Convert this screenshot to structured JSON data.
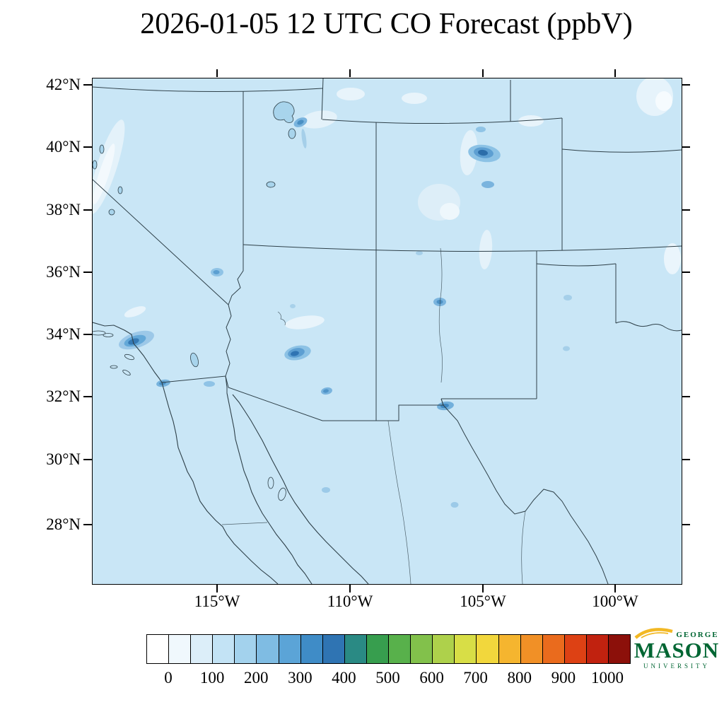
{
  "title": "2026-01-05 12 UTC CO Forecast (ppbV)",
  "axes": {
    "lat_labels": [
      "42°N",
      "40°N",
      "38°N",
      "36°N",
      "34°N",
      "32°N",
      "30°N",
      "28°N"
    ],
    "lon_labels": [
      "115°W",
      "110°W",
      "105°W",
      "100°W"
    ]
  },
  "colorbar": {
    "tick_labels": [
      "0",
      "100",
      "200",
      "300",
      "400",
      "500",
      "600",
      "700",
      "800",
      "900",
      "1000"
    ],
    "colors": [
      "#ffffff",
      "#f0f8fd",
      "#dceef9",
      "#c3e3f5",
      "#a3d2ed",
      "#7fbce3",
      "#5ba4d7",
      "#3f8cc7",
      "#2f74b3",
      "#2a8a84",
      "#379e4e",
      "#58b14b",
      "#82c14b",
      "#aed14b",
      "#d8de46",
      "#f2d73c",
      "#f5b52f",
      "#f19026",
      "#ea6b1d",
      "#dd4114",
      "#c1220f",
      "#8c100a"
    ]
  },
  "logo": {
    "line1": "GEORGE",
    "line2": "MASON",
    "line3": "UNIVERSITY"
  },
  "colors": {
    "map_background": "#c9e6f6",
    "border_lines": "#2e4049",
    "frame": "#000000",
    "logo_green": "#006633",
    "logo_gold": "#f2b824",
    "hotspot_blue_light": "#8cc2e5",
    "hotspot_blue_mid": "#5d9fd2",
    "hotspot_blue_dark": "#2f74b3"
  },
  "chart_data": {
    "type": "heatmap",
    "title": "2026-01-05 12 UTC CO Forecast (ppbV)",
    "variable": "CO",
    "units": "ppbV",
    "valid_time": "2026-01-05 12 UTC",
    "extent": {
      "lon_west": -120,
      "lon_east": -97.5,
      "lat_south": 26.2,
      "lat_north": 42.3
    },
    "x_tick_labels": [
      "115°W",
      "110°W",
      "105°W",
      "100°W"
    ],
    "y_tick_labels": [
      "42°N",
      "40°N",
      "38°N",
      "36°N",
      "34°N",
      "32°N",
      "30°N",
      "28°N"
    ],
    "colorbar": {
      "min": 0,
      "max": 1000,
      "cell_interval": 50,
      "tick_interval": 100,
      "n_cells": 22,
      "orientation": "horizontal"
    },
    "background_level_ppbv": 100,
    "elevated_regions": [
      {
        "lon": -105.0,
        "lat": 39.7,
        "approx_peak_ppbv": 450
      },
      {
        "lon": -112.1,
        "lat": 33.4,
        "approx_peak_ppbv": 400
      },
      {
        "lon": -118.2,
        "lat": 34.0,
        "approx_peak_ppbv": 350
      },
      {
        "lon": -106.5,
        "lat": 31.8,
        "approx_peak_ppbv": 300
      },
      {
        "lon": -111.9,
        "lat": 40.8,
        "approx_peak_ppbv": 250
      },
      {
        "lon": -106.7,
        "lat": 35.1,
        "approx_peak_ppbv": 250
      },
      {
        "lon": -117.1,
        "lat": 32.6,
        "approx_peak_ppbv": 250
      },
      {
        "lon": -115.2,
        "lat": 36.1,
        "approx_peak_ppbv": 200
      },
      {
        "lon": -111.0,
        "lat": 32.2,
        "approx_peak_ppbv": 200
      }
    ],
    "low_level_ppbv_over_mountains": 50,
    "grid": false,
    "legend_position": "bottom"
  }
}
